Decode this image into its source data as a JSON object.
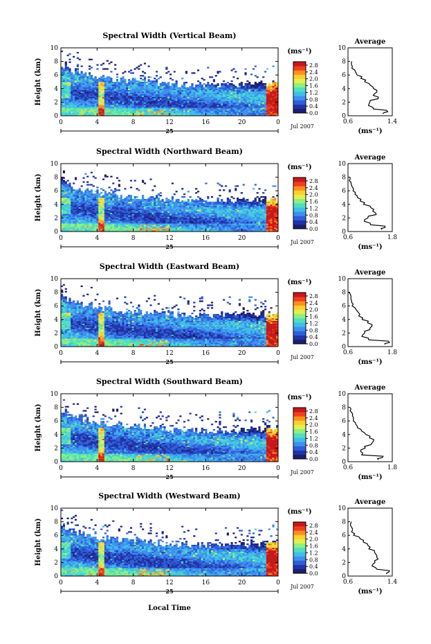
{
  "figure": {
    "xlabel": "Local Time",
    "date_label": "Jul 2007",
    "day_label": "25",
    "ylabel": "Height (km)",
    "unit_label": "(ms⁻¹)",
    "avg_title": "Average",
    "avg_xlabel": "(ms⁻¹)"
  },
  "colors": {
    "scale": [
      "#1c1e6e",
      "#2233a8",
      "#2f5fd6",
      "#3f8ff0",
      "#3fbfe8",
      "#4fdfc0",
      "#8fef7f",
      "#dff04f",
      "#ffcf2f",
      "#ff8f1f",
      "#ef3f1f",
      "#c81818"
    ]
  },
  "chart_data": [
    {
      "type": "heatmap",
      "title": "Spectral Width (Vertical Beam)",
      "x_ticks": [
        "0",
        "4",
        "8",
        "12",
        "16",
        "20",
        "0"
      ],
      "xlim": [
        0,
        24
      ],
      "y_ticks": [
        "0",
        "2",
        "4",
        "6",
        "8",
        "10"
      ],
      "ylim": [
        0,
        10
      ],
      "colorbar_ticks": [
        "0.0",
        "0.4",
        "0.8",
        "1.2",
        "1.6",
        "2.0",
        "2.4",
        "2.8"
      ],
      "colorbar_range": [
        0.0,
        3.0
      ],
      "average": {
        "title": "Average",
        "x_ticks": [
          "0.6",
          "1.4"
        ],
        "xlim": [
          0.6,
          1.4
        ],
        "y_ticks": [
          "0",
          "2",
          "4",
          "6",
          "8",
          "10"
        ],
        "height_km": [
          0.3,
          0.6,
          1.0,
          1.5,
          2.0,
          2.5,
          3.0,
          3.5,
          4.0,
          4.5,
          5.0,
          5.5,
          6.0,
          6.5,
          7.0,
          7.5,
          8.0
        ],
        "values": [
          1.25,
          1.3,
          1.05,
          0.98,
          1.0,
          1.15,
          1.08,
          1.12,
          1.05,
          0.98,
          0.92,
          0.85,
          0.75,
          0.72,
          0.68,
          0.66,
          0.65
        ]
      }
    },
    {
      "type": "heatmap",
      "title": "Spectral Width (Northward Beam)",
      "x_ticks": [
        "0",
        "4",
        "8",
        "12",
        "16",
        "20",
        "0"
      ],
      "xlim": [
        0,
        24
      ],
      "y_ticks": [
        "0",
        "2",
        "4",
        "6",
        "8",
        "10"
      ],
      "ylim": [
        0,
        10
      ],
      "colorbar_ticks": [
        "0.0",
        "0.4",
        "0.8",
        "1.2",
        "1.6",
        "2.0",
        "2.4",
        "2.8"
      ],
      "colorbar_range": [
        0.0,
        3.0
      ],
      "average": {
        "title": "Average",
        "x_ticks": [
          "0.6",
          "1.8"
        ],
        "xlim": [
          0.6,
          1.8
        ],
        "y_ticks": [
          "0",
          "2",
          "4",
          "6",
          "8",
          "10"
        ],
        "height_km": [
          0.3,
          0.6,
          1.0,
          1.5,
          2.0,
          2.5,
          3.0,
          3.5,
          4.0,
          4.5,
          5.0,
          5.5,
          6.0,
          6.5,
          7.0,
          7.5,
          8.0
        ],
        "values": [
          1.5,
          1.6,
          1.2,
          1.05,
          1.15,
          1.35,
          1.3,
          1.2,
          1.05,
          0.95,
          0.85,
          0.8,
          0.75,
          0.7,
          0.68,
          0.66,
          0.65
        ]
      }
    },
    {
      "type": "heatmap",
      "title": "Spectral Width (Eastward Beam)",
      "x_ticks": [
        "0",
        "4",
        "8",
        "12",
        "16",
        "20",
        "0"
      ],
      "xlim": [
        0,
        24
      ],
      "y_ticks": [
        "0",
        "2",
        "4",
        "6",
        "8",
        "10"
      ],
      "ylim": [
        0,
        10
      ],
      "colorbar_ticks": [
        "0.0",
        "0.4",
        "0.8",
        "1.2",
        "1.6",
        "2.0",
        "2.4",
        "2.8"
      ],
      "colorbar_range": [
        0.0,
        3.0
      ],
      "average": {
        "title": "Average",
        "x_ticks": [
          "0.6",
          "1.8"
        ],
        "xlim": [
          0.6,
          1.8
        ],
        "y_ticks": [
          "0",
          "2",
          "4",
          "6",
          "8",
          "10"
        ],
        "height_km": [
          0.3,
          0.6,
          1.0,
          1.5,
          2.0,
          2.5,
          3.0,
          3.5,
          4.0,
          4.5,
          5.0,
          5.5,
          6.0,
          6.5,
          7.0,
          7.5,
          8.0
        ],
        "values": [
          1.6,
          1.7,
          1.15,
          1.0,
          1.05,
          1.2,
          1.25,
          1.15,
          1.0,
          0.92,
          0.85,
          0.78,
          0.74,
          0.7,
          0.68,
          0.66,
          0.65
        ]
      }
    },
    {
      "type": "heatmap",
      "title": "Spectral Width (Southward Beam)",
      "x_ticks": [
        "0",
        "4",
        "8",
        "12",
        "16",
        "20",
        "0"
      ],
      "xlim": [
        0,
        24
      ],
      "y_ticks": [
        "0",
        "2",
        "4",
        "6",
        "8",
        "10"
      ],
      "ylim": [
        0,
        10
      ],
      "colorbar_ticks": [
        "0.0",
        "0.4",
        "0.8",
        "1.2",
        "1.6",
        "2.0",
        "2.4",
        "2.8"
      ],
      "colorbar_range": [
        0.0,
        3.0
      ],
      "average": {
        "title": "Average",
        "x_ticks": [
          "0.6",
          "1.8"
        ],
        "xlim": [
          0.6,
          1.8
        ],
        "y_ticks": [
          "0",
          "2",
          "4",
          "6",
          "8",
          "10"
        ],
        "height_km": [
          0.3,
          0.6,
          1.0,
          1.5,
          2.0,
          2.5,
          3.0,
          3.5,
          4.0,
          4.5,
          5.0,
          5.5,
          6.0,
          6.5,
          7.0,
          7.5,
          8.0
        ],
        "values": [
          1.4,
          1.55,
          1.0,
          0.95,
          1.05,
          1.25,
          1.3,
          1.2,
          1.05,
          0.95,
          0.85,
          0.8,
          0.75,
          0.72,
          0.7,
          0.68,
          0.66
        ]
      }
    },
    {
      "type": "heatmap",
      "title": "Spectral Width (Westward Beam)",
      "x_ticks": [
        "0",
        "4",
        "8",
        "12",
        "16",
        "20",
        "0"
      ],
      "xlim": [
        0,
        24
      ],
      "y_ticks": [
        "0",
        "2",
        "4",
        "6",
        "8",
        "10"
      ],
      "ylim": [
        0,
        10
      ],
      "colorbar_ticks": [
        "0.0",
        "0.4",
        "0.8",
        "1.2",
        "1.6",
        "2.0",
        "2.4",
        "2.8"
      ],
      "colorbar_range": [
        0.0,
        3.0
      ],
      "average": {
        "title": "Average",
        "x_ticks": [
          "0.6",
          "1.4"
        ],
        "xlim": [
          0.6,
          1.4
        ],
        "y_ticks": [
          "0",
          "2",
          "4",
          "6",
          "8",
          "10"
        ],
        "height_km": [
          0.3,
          0.6,
          1.0,
          1.5,
          2.0,
          2.5,
          3.0,
          3.5,
          4.0,
          4.5,
          5.0,
          5.5,
          6.0,
          6.5,
          7.0,
          7.5,
          8.0
        ],
        "values": [
          1.3,
          1.35,
          1.1,
          1.05,
          1.08,
          1.12,
          1.1,
          1.08,
          1.0,
          0.95,
          0.88,
          0.8,
          0.72,
          0.68,
          0.66,
          0.65,
          0.64
        ]
      }
    }
  ]
}
